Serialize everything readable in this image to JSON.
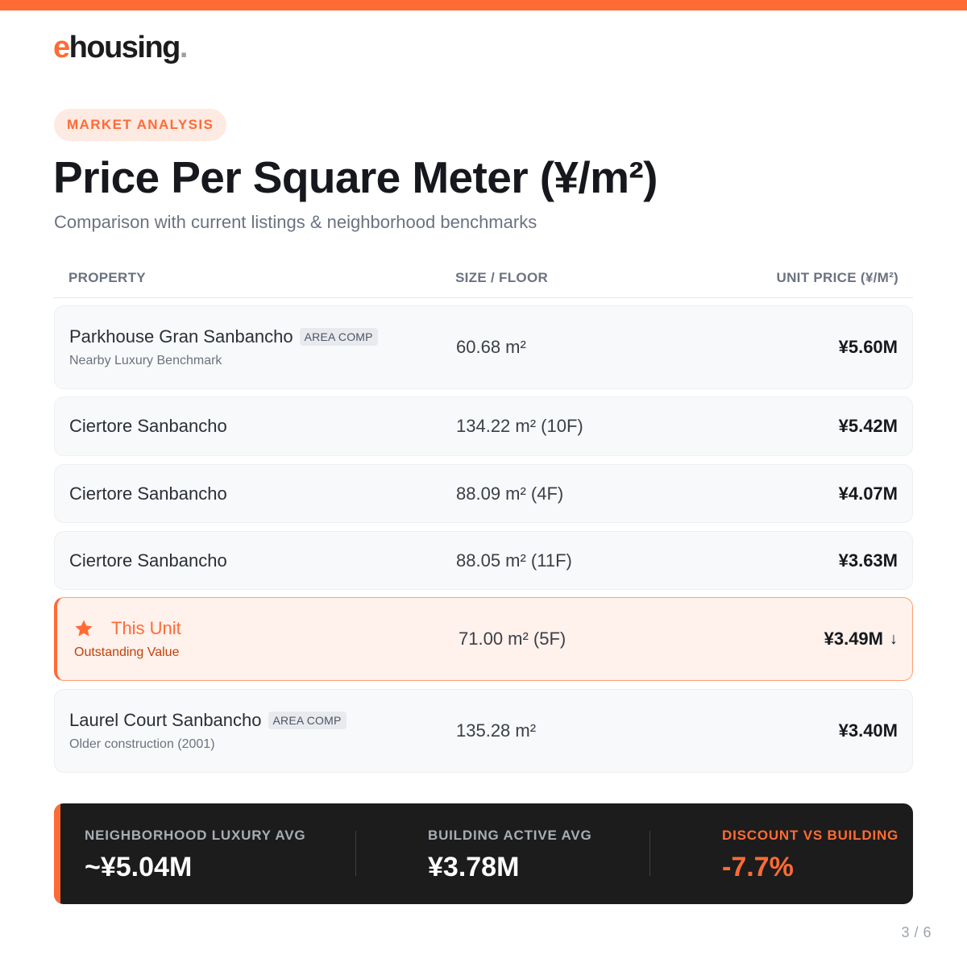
{
  "brand": {
    "e": "e",
    "rest": "housing",
    "dot": ".",
    "accent_color": "#ff6b35"
  },
  "tag": "MARKET ANALYSIS",
  "title": "Price Per Square Meter (¥/m²)",
  "subtitle": "Comparison with current listings & neighborhood benchmarks",
  "table": {
    "headers": [
      "PROPERTY",
      "SIZE / FLOOR",
      "UNIT PRICE (¥/M²)"
    ],
    "rows": [
      {
        "name": "Parkhouse Gran Sanbancho",
        "badge": "AREA COMP",
        "sub": "Nearby Luxury Benchmark",
        "size": "60.68 m²",
        "price": "¥5.60M"
      },
      {
        "name": "Ciertore Sanbancho",
        "size": "134.22 m² (10F)",
        "price": "¥5.42M"
      },
      {
        "name": "Ciertore Sanbancho",
        "size": "88.09 m² (4F)",
        "price": "¥4.07M"
      },
      {
        "name": "Ciertore Sanbancho",
        "size": "88.05 m² (11F)",
        "price": "¥3.63M"
      },
      {
        "name": "This Unit",
        "sub": "Outstanding Value",
        "size": "71.00 m² (5F)",
        "price": "¥3.49M",
        "arrow": "↓",
        "icon": "star-icon",
        "highlight": true
      },
      {
        "name": "Laurel Court Sanbancho",
        "badge": "AREA COMP",
        "sub": "Older construction (2001)",
        "size": "135.28 m²",
        "price": "¥3.40M"
      }
    ]
  },
  "summary": [
    {
      "label": "NEIGHBORHOOD LUXURY AVG",
      "value": "~¥5.04M"
    },
    {
      "label": "BUILDING ACTIVE AVG",
      "value": "¥3.78M"
    },
    {
      "label": "DISCOUNT VS BUILDING",
      "value": "-7.7%"
    }
  ],
  "page_indicator": "3 / 6"
}
